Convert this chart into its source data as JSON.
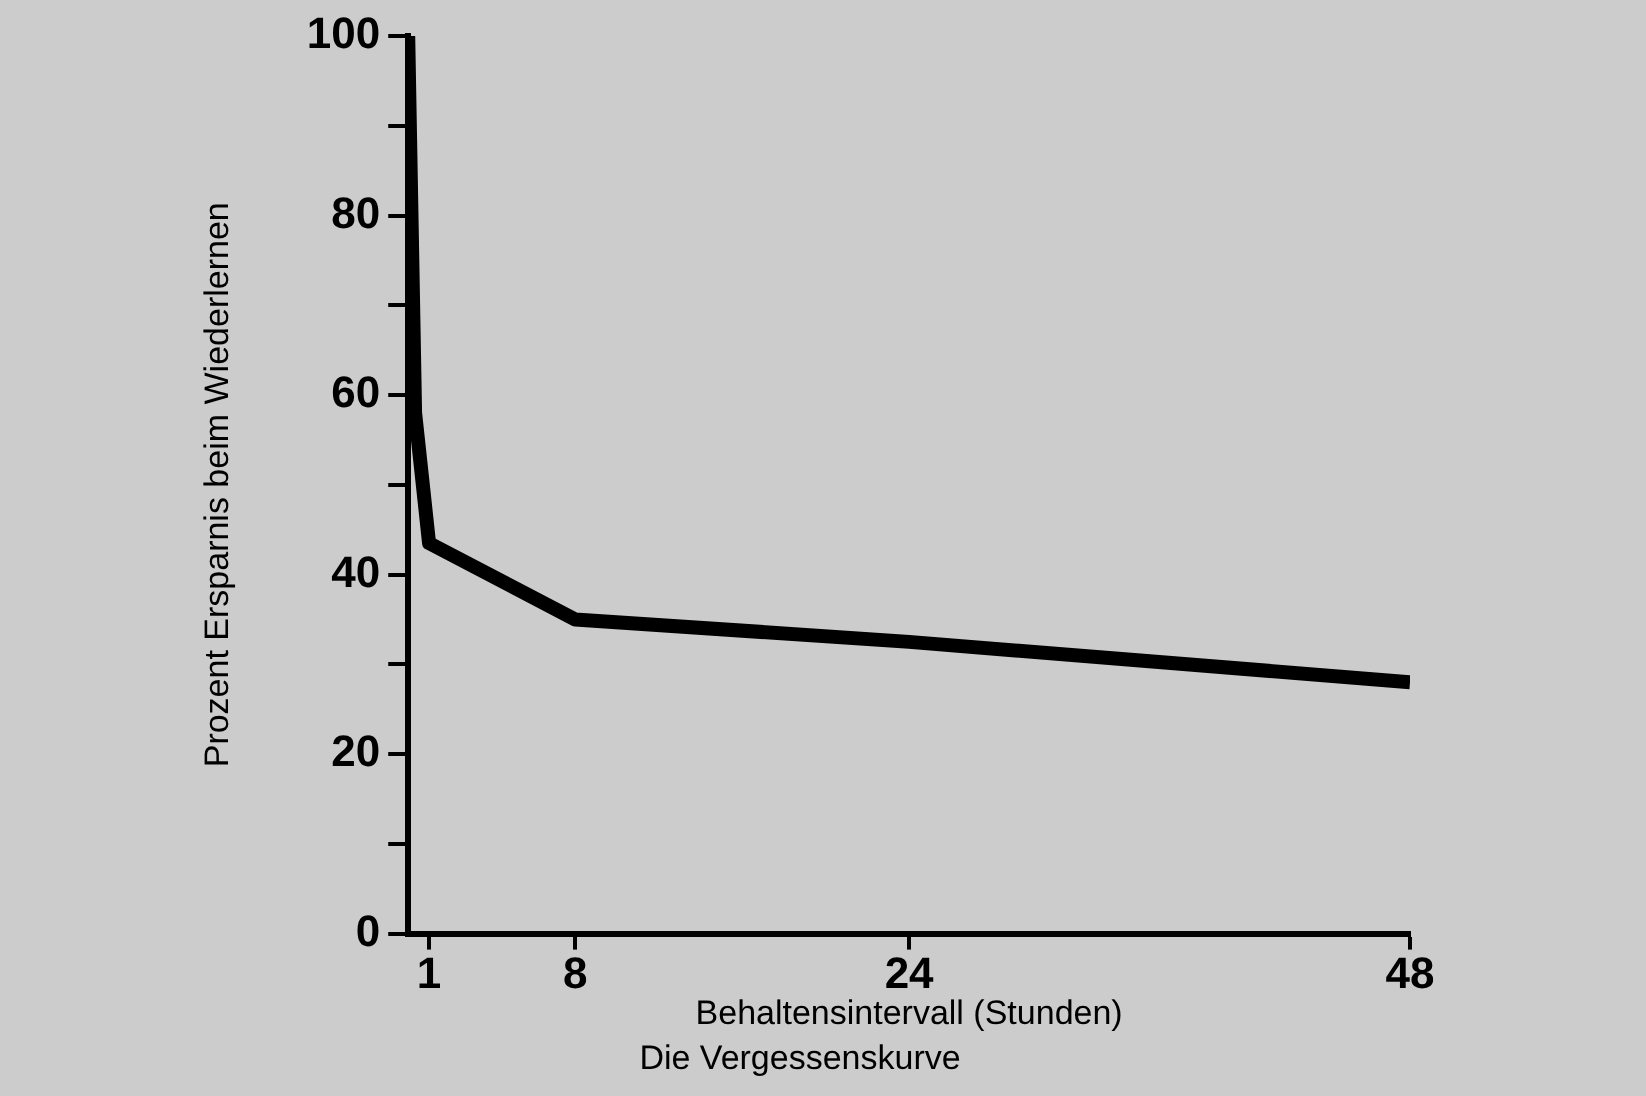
{
  "chart_data": {
    "type": "line",
    "title": "Die Vergessenskurve",
    "xlabel": "Behaltensintervall (Stunden)",
    "ylabel": "Prozent Ersparnis beim Wiederlernen",
    "x": [
      0,
      0.33,
      1,
      8,
      24,
      48
    ],
    "series": [
      {
        "color": "#000000",
        "values": [
          100,
          58,
          43.5,
          35,
          32.5,
          28
        ]
      }
    ],
    "xlim": [
      0,
      48
    ],
    "xticks": [
      1,
      8,
      24,
      48
    ],
    "ylim": [
      0,
      100
    ],
    "yticks": [
      0,
      {
        "value": 10,
        "label": null
      },
      20,
      {
        "value": 30,
        "label": null
      },
      40,
      {
        "value": 50,
        "label": null
      },
      60,
      {
        "value": 70,
        "label": null
      },
      80,
      {
        "value": 90,
        "label": null
      },
      100
    ],
    "grid": false,
    "legend": false,
    "marker": "none",
    "line_style": "solid"
  }
}
